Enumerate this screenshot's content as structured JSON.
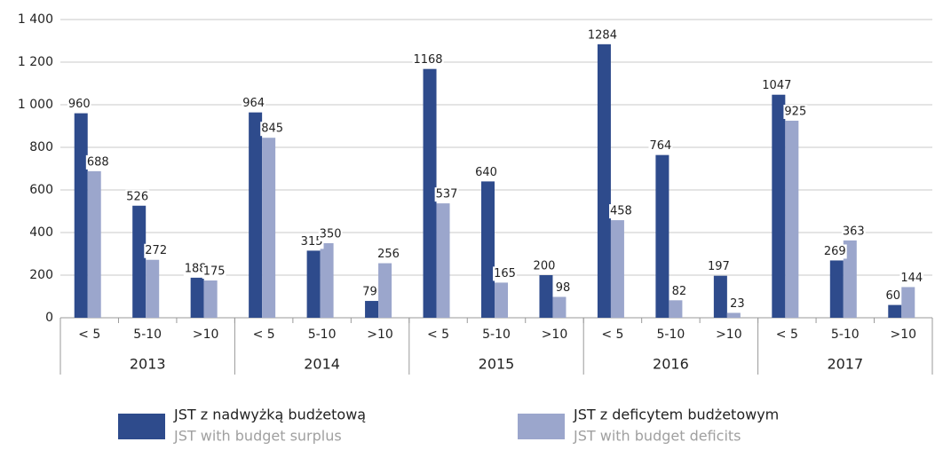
{
  "chart_data": {
    "type": "bar",
    "categories": [
      "< 5",
      "5-10",
      ">10",
      "< 5",
      "5-10",
      ">10",
      "< 5",
      "5-10",
      ">10",
      "< 5",
      "5-10",
      ">10",
      "< 5",
      "5-10",
      ">10"
    ],
    "category_groups": [
      "2013",
      "2014",
      "2015",
      "2016",
      "2017"
    ],
    "series": [
      {
        "name": "JST z nadwyżką budżetową",
        "subname": "JST with budget surplus",
        "color": "#2e4b8c",
        "values": [
          960,
          526,
          188,
          964,
          315,
          79,
          1168,
          640,
          200,
          1284,
          764,
          197,
          1047,
          269,
          60
        ]
      },
      {
        "name": "JST z deficytem budżetowym",
        "subname": "JST with budget deficits",
        "color": "#9ba6cc",
        "values": [
          688,
          272,
          175,
          845,
          350,
          256,
          537,
          165,
          98,
          458,
          82,
          23,
          925,
          363,
          144
        ]
      }
    ],
    "ylim": [
      0,
      1400
    ],
    "yticks": [
      0,
      200,
      400,
      600,
      800,
      {
        "value": 1000,
        "label": "1 000"
      },
      {
        "value": 1200,
        "label": "1 200"
      },
      {
        "value": 1400,
        "label": "1 400"
      }
    ],
    "grid": true,
    "legend": "bottom"
  }
}
